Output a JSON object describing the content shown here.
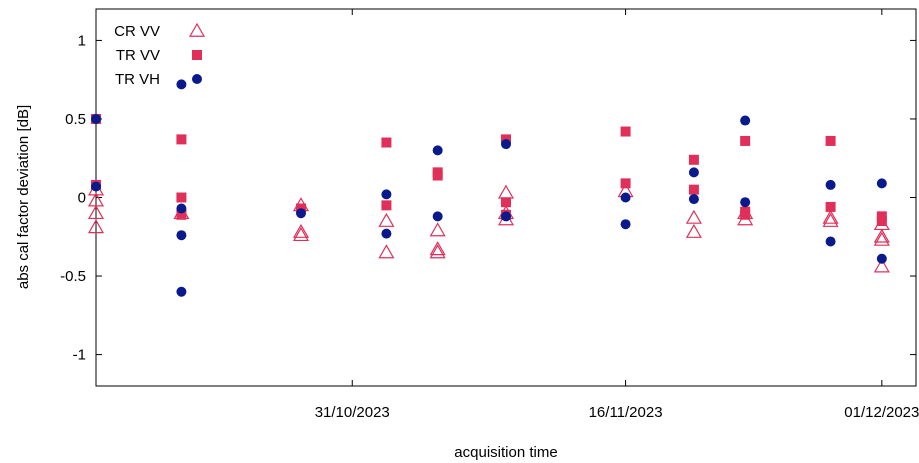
{
  "chart_data": {
    "type": "scatter",
    "title": "",
    "xlabel": "acquisition time",
    "ylabel": "abs cal factor deviation [dB]",
    "ylim": [
      -1.2,
      1.2
    ],
    "xlim": [
      "2023-10-16",
      "2023-12-03"
    ],
    "yticks": [
      {
        "value": 1,
        "label": "1"
      },
      {
        "value": 0.5,
        "label": "0.5"
      },
      {
        "value": 0,
        "label": "0"
      },
      {
        "value": -0.5,
        "label": "-0.5"
      },
      {
        "value": -1,
        "label": "-1"
      }
    ],
    "xticks": [
      {
        "value": "2023-10-31",
        "label": "31/10/2023"
      },
      {
        "value": "2023-11-16",
        "label": "16/11/2023"
      },
      {
        "value": "2023-12-01",
        "label": "01/12/2023"
      }
    ],
    "legend_position": "top-left",
    "series": [
      {
        "name": "CR VV",
        "marker": "triangle-open",
        "color": "#e0305a",
        "points": [
          {
            "x": "2023-10-16",
            "y": 0.05
          },
          {
            "x": "2023-10-16",
            "y": -0.02
          },
          {
            "x": "2023-10-16",
            "y": -0.1
          },
          {
            "x": "2023-10-16",
            "y": -0.19
          },
          {
            "x": "2023-10-21",
            "y": -0.1
          },
          {
            "x": "2023-10-28",
            "y": -0.05
          },
          {
            "x": "2023-10-28",
            "y": -0.22
          },
          {
            "x": "2023-10-28",
            "y": -0.24
          },
          {
            "x": "2023-11-02",
            "y": -0.15
          },
          {
            "x": "2023-11-02",
            "y": -0.35
          },
          {
            "x": "2023-11-05",
            "y": -0.21
          },
          {
            "x": "2023-11-05",
            "y": -0.33
          },
          {
            "x": "2023-11-05",
            "y": -0.35
          },
          {
            "x": "2023-11-09",
            "y": 0.03
          },
          {
            "x": "2023-11-09",
            "y": -0.1
          },
          {
            "x": "2023-11-09",
            "y": -0.14
          },
          {
            "x": "2023-11-16",
            "y": 0.04
          },
          {
            "x": "2023-11-20",
            "y": -0.13
          },
          {
            "x": "2023-11-20",
            "y": -0.22
          },
          {
            "x": "2023-11-23",
            "y": -0.1
          },
          {
            "x": "2023-11-23",
            "y": -0.14
          },
          {
            "x": "2023-11-28",
            "y": -0.13
          },
          {
            "x": "2023-11-28",
            "y": -0.15
          },
          {
            "x": "2023-12-01",
            "y": -0.17
          },
          {
            "x": "2023-12-01",
            "y": -0.25
          },
          {
            "x": "2023-12-01",
            "y": -0.27
          },
          {
            "x": "2023-12-01",
            "y": -0.44
          }
        ]
      },
      {
        "name": "TR VV",
        "marker": "square-filled",
        "color": "#e0305a",
        "points": [
          {
            "x": "2023-10-16",
            "y": 0.5
          },
          {
            "x": "2023-10-16",
            "y": 0.08
          },
          {
            "x": "2023-10-21",
            "y": 0.37
          },
          {
            "x": "2023-10-21",
            "y": 0.0
          },
          {
            "x": "2023-10-21",
            "y": -0.11
          },
          {
            "x": "2023-10-28",
            "y": -0.07
          },
          {
            "x": "2023-11-02",
            "y": 0.35
          },
          {
            "x": "2023-11-02",
            "y": -0.05
          },
          {
            "x": "2023-11-05",
            "y": 0.16
          },
          {
            "x": "2023-11-05",
            "y": 0.14
          },
          {
            "x": "2023-11-09",
            "y": 0.37
          },
          {
            "x": "2023-11-09",
            "y": -0.03
          },
          {
            "x": "2023-11-09",
            "y": -0.11
          },
          {
            "x": "2023-11-16",
            "y": 0.42
          },
          {
            "x": "2023-11-16",
            "y": 0.09
          },
          {
            "x": "2023-11-20",
            "y": 0.24
          },
          {
            "x": "2023-11-20",
            "y": 0.05
          },
          {
            "x": "2023-11-23",
            "y": 0.36
          },
          {
            "x": "2023-11-23",
            "y": -0.09
          },
          {
            "x": "2023-11-23",
            "y": -0.11
          },
          {
            "x": "2023-11-28",
            "y": 0.36
          },
          {
            "x": "2023-11-28",
            "y": -0.06
          },
          {
            "x": "2023-12-01",
            "y": -0.12
          },
          {
            "x": "2023-12-01",
            "y": -0.15
          }
        ]
      },
      {
        "name": "TR VH",
        "marker": "circle-filled",
        "color": "#0a1a8c",
        "points": [
          {
            "x": "2023-10-16",
            "y": 0.5
          },
          {
            "x": "2023-10-16",
            "y": 0.07
          },
          {
            "x": "2023-10-21",
            "y": 0.72
          },
          {
            "x": "2023-10-21",
            "y": -0.07
          },
          {
            "x": "2023-10-21",
            "y": -0.24
          },
          {
            "x": "2023-10-21",
            "y": -0.6
          },
          {
            "x": "2023-10-28",
            "y": -0.1
          },
          {
            "x": "2023-11-02",
            "y": 0.02
          },
          {
            "x": "2023-11-02",
            "y": -0.23
          },
          {
            "x": "2023-11-05",
            "y": 0.3
          },
          {
            "x": "2023-11-05",
            "y": -0.12
          },
          {
            "x": "2023-11-09",
            "y": 0.34
          },
          {
            "x": "2023-11-09",
            "y": -0.12
          },
          {
            "x": "2023-11-16",
            "y": 0.0
          },
          {
            "x": "2023-11-16",
            "y": -0.17
          },
          {
            "x": "2023-11-20",
            "y": 0.16
          },
          {
            "x": "2023-11-20",
            "y": -0.01
          },
          {
            "x": "2023-11-23",
            "y": 0.49
          },
          {
            "x": "2023-11-23",
            "y": -0.03
          },
          {
            "x": "2023-11-28",
            "y": 0.08
          },
          {
            "x": "2023-11-28",
            "y": -0.28
          },
          {
            "x": "2023-12-01",
            "y": 0.09
          },
          {
            "x": "2023-12-01",
            "y": -0.39
          }
        ]
      }
    ]
  }
}
